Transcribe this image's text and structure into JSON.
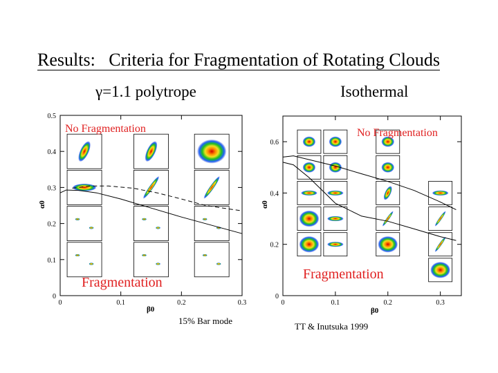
{
  "slide": {
    "title_prefix": "Results:",
    "title_main": "Criteria for Fragmentation of Rotating Clouds",
    "left_subtitle_symbol": "γ",
    "left_subtitle_rest": "=1.1 polytrope",
    "right_subtitle": "Isothermal",
    "left_caption": "15% Bar mode",
    "right_caption": "TT & Inutsuka 1999",
    "colors": {
      "red_label": "#e02020",
      "frag_red": "#e00000"
    }
  },
  "chart_data": [
    {
      "type": "scatter",
      "title": "γ=1.1 polytrope",
      "xlabel": "β0",
      "ylabel": "α0",
      "xlim": [
        0,
        0.3
      ],
      "ylim": [
        0,
        0.5
      ],
      "xticks": [
        "0",
        "0.1",
        "0.2",
        "0.3"
      ],
      "yticks": [
        "0",
        "0.1",
        "0.2",
        "0.3",
        "0.4",
        "0.5"
      ],
      "annotations": [
        "No Fragmentation",
        "Fragmentation"
      ],
      "series": [
        {
          "name": "solid boundary",
          "style": "solid",
          "x": [
            0,
            0.01,
            0.03,
            0.06,
            0.1,
            0.15,
            0.2,
            0.25,
            0.3
          ],
          "y": [
            0.285,
            0.293,
            0.292,
            0.285,
            0.268,
            0.243,
            0.218,
            0.195,
            0.172
          ]
        },
        {
          "name": "dashed boundary",
          "style": "dashed",
          "x": [
            0.02,
            0.05,
            0.08,
            0.12,
            0.16,
            0.2,
            0.24,
            0.3
          ],
          "y": [
            0.298,
            0.304,
            0.304,
            0.298,
            0.285,
            0.268,
            0.25,
            0.235
          ]
        }
      ],
      "snapshots": [
        {
          "x": 0.04,
          "y": 0.4,
          "shape": "oblique"
        },
        {
          "x": 0.15,
          "y": 0.4,
          "shape": "oblique"
        },
        {
          "x": 0.25,
          "y": 0.4,
          "shape": "disk"
        },
        {
          "x": 0.04,
          "y": 0.3,
          "shape": "flat"
        },
        {
          "x": 0.15,
          "y": 0.3,
          "shape": "bar"
        },
        {
          "x": 0.25,
          "y": 0.3,
          "shape": "bar"
        },
        {
          "x": 0.04,
          "y": 0.2,
          "shape": "frag"
        },
        {
          "x": 0.15,
          "y": 0.2,
          "shape": "frag"
        },
        {
          "x": 0.25,
          "y": 0.2,
          "shape": "frag"
        },
        {
          "x": 0.04,
          "y": 0.1,
          "shape": "frag"
        },
        {
          "x": 0.15,
          "y": 0.1,
          "shape": "frag"
        },
        {
          "x": 0.25,
          "y": 0.1,
          "shape": "frag"
        }
      ]
    },
    {
      "type": "scatter",
      "title": "Isothermal",
      "xlabel": "β0",
      "ylabel": "α0",
      "xlim": [
        0,
        0.34
      ],
      "ylim": [
        0,
        0.7
      ],
      "xticks": [
        "0",
        "0.1",
        "0.2",
        "0.3"
      ],
      "yticks": [
        "0",
        "0.2",
        "0.4",
        "0.6"
      ],
      "annotations": [
        "No Fragmentation",
        "Fragmentation"
      ],
      "series": [
        {
          "name": "upper boundary",
          "style": "solid",
          "x": [
            0,
            0.02,
            0.05,
            0.1,
            0.15,
            0.2,
            0.25,
            0.3,
            0.33
          ],
          "y": [
            0.54,
            0.545,
            0.53,
            0.505,
            0.475,
            0.445,
            0.41,
            0.365,
            0.335
          ]
        },
        {
          "name": "lower boundary",
          "style": "solid",
          "x": [
            0,
            0.02,
            0.05,
            0.08,
            0.1,
            0.15,
            0.2,
            0.25,
            0.3,
            0.33
          ],
          "y": [
            0.52,
            0.51,
            0.46,
            0.4,
            0.36,
            0.31,
            0.29,
            0.26,
            0.23,
            0.215
          ]
        }
      ],
      "snapshots": [
        {
          "x": 0.05,
          "y": 0.6,
          "shape": "blob"
        },
        {
          "x": 0.1,
          "y": 0.6,
          "shape": "blob"
        },
        {
          "x": 0.2,
          "y": 0.6,
          "shape": "blob"
        },
        {
          "x": 0.05,
          "y": 0.5,
          "shape": "blob"
        },
        {
          "x": 0.1,
          "y": 0.5,
          "shape": "blob"
        },
        {
          "x": 0.2,
          "y": 0.5,
          "shape": "blob"
        },
        {
          "x": 0.05,
          "y": 0.4,
          "shape": "flat"
        },
        {
          "x": 0.1,
          "y": 0.4,
          "shape": "flat"
        },
        {
          "x": 0.2,
          "y": 0.4,
          "shape": "oblique"
        },
        {
          "x": 0.3,
          "y": 0.4,
          "shape": "flat"
        },
        {
          "x": 0.05,
          "y": 0.3,
          "shape": "disk"
        },
        {
          "x": 0.1,
          "y": 0.3,
          "shape": "flat"
        },
        {
          "x": 0.2,
          "y": 0.3,
          "shape": "bar"
        },
        {
          "x": 0.3,
          "y": 0.3,
          "shape": "bar"
        },
        {
          "x": 0.05,
          "y": 0.2,
          "shape": "disk"
        },
        {
          "x": 0.1,
          "y": 0.2,
          "shape": "flat"
        },
        {
          "x": 0.2,
          "y": 0.2,
          "shape": "disk"
        },
        {
          "x": 0.3,
          "y": 0.2,
          "shape": "bar"
        },
        {
          "x": 0.3,
          "y": 0.1,
          "shape": "disk"
        }
      ]
    }
  ]
}
